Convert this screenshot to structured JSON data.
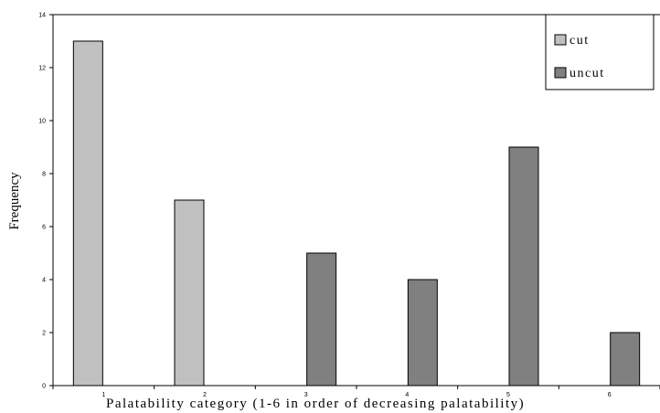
{
  "chart_data": {
    "type": "bar",
    "categories": [
      "1",
      "2",
      "3",
      "4",
      "5",
      "6"
    ],
    "series": [
      {
        "name": "cut",
        "values": [
          13,
          7,
          0,
          0,
          0,
          0
        ],
        "color": "#c0c0c0"
      },
      {
        "name": "uncut",
        "values": [
          0,
          0,
          5,
          4,
          9,
          2
        ],
        "color": "#808080"
      }
    ],
    "title": "",
    "xlabel": "Palatability category (1-6 in order of decreasing palatability)",
    "ylabel": "Frequency",
    "ylim": [
      0,
      14
    ],
    "yticks": [
      "0",
      "2",
      "4",
      "6",
      "8",
      "10",
      "12",
      "14"
    ],
    "grid": false,
    "legend_position": "top-right"
  }
}
